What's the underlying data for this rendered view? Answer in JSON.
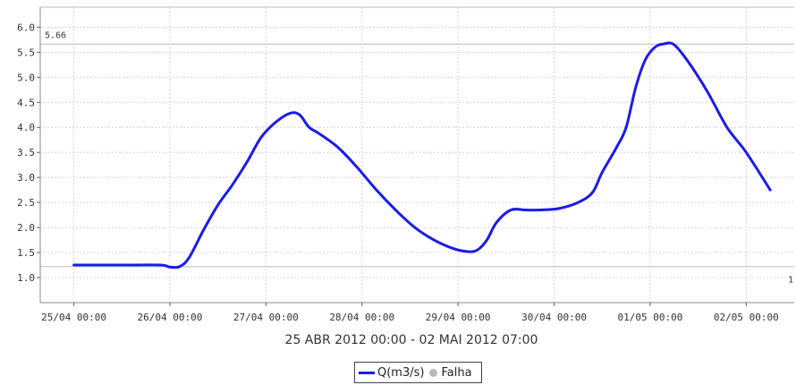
{
  "colors": {
    "series": "#1a1aee",
    "reference": "#c8c8c8",
    "failure": "#b8b8b8",
    "grid": "#d4d4d4"
  },
  "chart_data": {
    "type": "line",
    "title": "",
    "xlabel": "25 ABR 2012 00:00 - 02 MAI 2012 07:00",
    "ylabel": "",
    "ylim": [
      0.5,
      6.4
    ],
    "xlim_days": [
      -0.35,
      7.5
    ],
    "yticks": [
      "1.0",
      "1.5",
      "2.0",
      "2.5",
      "3.0",
      "3.5",
      "4.0",
      "4.5",
      "5.0",
      "5.5",
      "6.0"
    ],
    "xticks": [
      "25/04 00:00",
      "26/04 00:00",
      "27/04 00:00",
      "28/04 00:00",
      "29/04 00:00",
      "30/04 00:00",
      "01/05 00:00",
      "02/05 00:00"
    ],
    "grid": true,
    "legend_position": "bottom-center",
    "reference_lines": [
      {
        "value": 5.66,
        "label": "5.66"
      },
      {
        "value": 1.22,
        "label": "1"
      }
    ],
    "series": [
      {
        "name": "Q(m3/s)",
        "x_days": [
          0,
          0.5,
          0.9,
          1.0,
          1.1,
          1.2,
          1.35,
          1.5,
          1.65,
          1.8,
          1.95,
          2.1,
          2.25,
          2.35,
          2.45,
          2.55,
          2.75,
          2.95,
          3.15,
          3.35,
          3.55,
          3.75,
          3.95,
          4.1,
          4.2,
          4.3,
          4.4,
          4.55,
          4.7,
          4.85,
          5.05,
          5.25,
          5.4,
          5.5,
          5.65,
          5.75,
          5.85,
          5.95,
          6.05,
          6.15,
          6.25,
          6.4,
          6.6,
          6.8,
          7.0,
          7.25
        ],
        "values": [
          1.25,
          1.25,
          1.25,
          1.21,
          1.22,
          1.4,
          1.95,
          2.45,
          2.85,
          3.3,
          3.8,
          4.1,
          4.28,
          4.25,
          4.0,
          3.88,
          3.6,
          3.2,
          2.75,
          2.35,
          2.0,
          1.75,
          1.58,
          1.52,
          1.55,
          1.75,
          2.1,
          2.35,
          2.35,
          2.35,
          2.38,
          2.5,
          2.7,
          3.1,
          3.6,
          4.0,
          4.8,
          5.35,
          5.6,
          5.67,
          5.65,
          5.3,
          4.7,
          4.0,
          3.5,
          2.75
        ]
      },
      {
        "name": "Falha",
        "x_days": [],
        "values": []
      }
    ]
  }
}
